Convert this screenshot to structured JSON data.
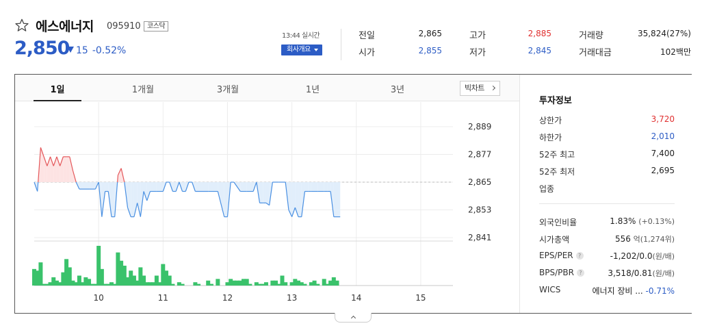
{
  "stock": {
    "name": "에스에너지",
    "code": "095910",
    "market": "코스닥",
    "price": "2,850",
    "change": "15",
    "change_rate": "-0.52%",
    "time": "13:44 실시간",
    "company_button": "회사개요"
  },
  "quotes": [
    {
      "label": "전일",
      "value": "2,865",
      "color": "dark"
    },
    {
      "label": "고가",
      "value": "2,885",
      "color": "red"
    },
    {
      "label": "거래량",
      "value": "35,824(27%)",
      "color": "dark"
    },
    {
      "label": "시가",
      "value": "2,855",
      "color": "blue"
    },
    {
      "label": "저가",
      "value": "2,845",
      "color": "blue"
    },
    {
      "label": "거래대금",
      "value": "102백만",
      "color": "dark"
    }
  ],
  "tabs": [
    "1일",
    "1개월",
    "3개월",
    "1년",
    "3년"
  ],
  "big_chart_button": "빅차트",
  "invest": {
    "title": "투자정보",
    "rows1": [
      {
        "label": "상한가",
        "value": "3,720",
        "color": "red"
      },
      {
        "label": "하한가",
        "value": "2,010",
        "color": "blue"
      },
      {
        "label": "52주 최고",
        "value": "7,400",
        "color": "dark"
      },
      {
        "label": "52주 최저",
        "value": "2,695",
        "color": "dark"
      },
      {
        "label": "업종",
        "value": "",
        "color": "dark"
      }
    ],
    "foreign": {
      "label": "외국인비율",
      "value": "1.83%",
      "sub": "(+0.13%)"
    },
    "mktcap": {
      "label": "시가총액",
      "value": "556",
      "sub": "억(1,274위)"
    },
    "eps": {
      "label": "EPS/PER",
      "value": "-1,202/0.0",
      "sub": "(원/배)"
    },
    "bps": {
      "label": "BPS/PBR",
      "value": "3,518/0.81",
      "sub": "(원/배)"
    },
    "wics": {
      "label": "WICS",
      "value": "에너지 장비 ...",
      "rate": "-0.71%"
    }
  },
  "chart_data": {
    "type": "line",
    "y_ticks": [
      "2,889",
      "2,877",
      "2,865",
      "2,853",
      "2,841"
    ],
    "ylim": [
      2841,
      2889
    ],
    "x_ticks": [
      "10",
      "11",
      "12",
      "13",
      "14",
      "15"
    ],
    "xlim": [
      9.0,
      15.5
    ],
    "baseline": 2865,
    "grid": true,
    "price_series": [
      [
        9.0,
        2865
      ],
      [
        9.05,
        2861
      ],
      [
        9.1,
        2880
      ],
      [
        9.15,
        2876
      ],
      [
        9.2,
        2872
      ],
      [
        9.25,
        2876
      ],
      [
        9.3,
        2872
      ],
      [
        9.35,
        2876
      ],
      [
        9.4,
        2872
      ],
      [
        9.45,
        2876
      ],
      [
        9.5,
        2876
      ],
      [
        9.55,
        2876
      ],
      [
        9.6,
        2870
      ],
      [
        9.65,
        2865
      ],
      [
        9.7,
        2862
      ],
      [
        9.85,
        2862
      ],
      [
        9.95,
        2862
      ],
      [
        10.0,
        2865
      ],
      [
        10.05,
        2850
      ],
      [
        10.1,
        2861
      ],
      [
        10.15,
        2861
      ],
      [
        10.2,
        2850
      ],
      [
        10.25,
        2850
      ],
      [
        10.3,
        2868
      ],
      [
        10.35,
        2871
      ],
      [
        10.4,
        2865
      ],
      [
        10.45,
        2854
      ],
      [
        10.5,
        2850
      ],
      [
        10.55,
        2850
      ],
      [
        10.6,
        2856
      ],
      [
        10.65,
        2850
      ],
      [
        10.7,
        2861
      ],
      [
        10.75,
        2857
      ],
      [
        10.8,
        2861
      ],
      [
        10.9,
        2861
      ],
      [
        11.0,
        2861
      ],
      [
        11.05,
        2865
      ],
      [
        11.1,
        2865
      ],
      [
        11.15,
        2861
      ],
      [
        11.2,
        2861
      ],
      [
        11.25,
        2865
      ],
      [
        11.3,
        2861
      ],
      [
        11.35,
        2861
      ],
      [
        11.4,
        2865
      ],
      [
        11.45,
        2865
      ],
      [
        11.5,
        2861
      ],
      [
        11.7,
        2861
      ],
      [
        11.85,
        2861
      ],
      [
        11.95,
        2850
      ],
      [
        12.0,
        2850
      ],
      [
        12.05,
        2865
      ],
      [
        12.1,
        2865
      ],
      [
        12.2,
        2861
      ],
      [
        12.3,
        2861
      ],
      [
        12.4,
        2861
      ],
      [
        12.45,
        2865
      ],
      [
        12.5,
        2856
      ],
      [
        12.55,
        2856
      ],
      [
        12.6,
        2856
      ],
      [
        12.65,
        2855
      ],
      [
        12.7,
        2865
      ],
      [
        12.8,
        2865
      ],
      [
        12.9,
        2865
      ],
      [
        12.95,
        2853
      ],
      [
        13.0,
        2850
      ],
      [
        13.05,
        2854
      ],
      [
        13.1,
        2850
      ],
      [
        13.15,
        2850
      ],
      [
        13.2,
        2861
      ],
      [
        13.25,
        2861
      ],
      [
        13.3,
        2861
      ],
      [
        13.4,
        2861
      ],
      [
        13.5,
        2861
      ],
      [
        13.55,
        2861
      ],
      [
        13.6,
        2861
      ],
      [
        13.65,
        2850
      ],
      [
        13.7,
        2850
      ],
      [
        13.75,
        2850
      ]
    ],
    "volume_series": [
      [
        9.0,
        10
      ],
      [
        9.05,
        9
      ],
      [
        9.1,
        14
      ],
      [
        9.15,
        1
      ],
      [
        9.2,
        1
      ],
      [
        9.25,
        2
      ],
      [
        9.3,
        5
      ],
      [
        9.35,
        3
      ],
      [
        9.4,
        2
      ],
      [
        9.45,
        8
      ],
      [
        9.5,
        16
      ],
      [
        9.55,
        11
      ],
      [
        9.6,
        3
      ],
      [
        9.65,
        2
      ],
      [
        9.7,
        6
      ],
      [
        9.75,
        2
      ],
      [
        9.8,
        5
      ],
      [
        9.85,
        4
      ],
      [
        9.9,
        1
      ],
      [
        9.95,
        1
      ],
      [
        10.0,
        24
      ],
      [
        10.05,
        10
      ],
      [
        10.1,
        1
      ],
      [
        10.15,
        1
      ],
      [
        10.2,
        2
      ],
      [
        10.25,
        1
      ],
      [
        10.3,
        20
      ],
      [
        10.35,
        15
      ],
      [
        10.4,
        12
      ],
      [
        10.45,
        5
      ],
      [
        10.5,
        9
      ],
      [
        10.55,
        6
      ],
      [
        10.6,
        3
      ],
      [
        10.65,
        11
      ],
      [
        10.7,
        6
      ],
      [
        10.75,
        2
      ],
      [
        10.8,
        2
      ],
      [
        10.85,
        2
      ],
      [
        10.9,
        6
      ],
      [
        10.95,
        2
      ],
      [
        11.0,
        13
      ],
      [
        11.05,
        9
      ],
      [
        11.1,
        6
      ],
      [
        11.15,
        1
      ],
      [
        11.25,
        2
      ],
      [
        11.3,
        1
      ],
      [
        11.5,
        2
      ],
      [
        11.55,
        1
      ],
      [
        11.7,
        3
      ],
      [
        11.75,
        1
      ],
      [
        11.85,
        4
      ],
      [
        12.0,
        2
      ],
      [
        12.05,
        4
      ],
      [
        12.1,
        3
      ],
      [
        12.15,
        3
      ],
      [
        12.2,
        3
      ],
      [
        12.25,
        4
      ],
      [
        12.3,
        4
      ],
      [
        12.35,
        1
      ],
      [
        12.45,
        2
      ],
      [
        12.5,
        1
      ],
      [
        12.55,
        1
      ],
      [
        12.6,
        2
      ],
      [
        12.7,
        3
      ],
      [
        12.75,
        3
      ],
      [
        12.8,
        1
      ],
      [
        12.85,
        6
      ],
      [
        12.9,
        2
      ],
      [
        13.0,
        2
      ],
      [
        13.05,
        4
      ],
      [
        13.1,
        3
      ],
      [
        13.15,
        2
      ],
      [
        13.2,
        1
      ],
      [
        13.3,
        2
      ],
      [
        13.35,
        3
      ],
      [
        13.4,
        1
      ],
      [
        13.5,
        4
      ],
      [
        13.55,
        1
      ],
      [
        13.6,
        3
      ],
      [
        13.65,
        5
      ],
      [
        13.7,
        3
      ]
    ]
  }
}
